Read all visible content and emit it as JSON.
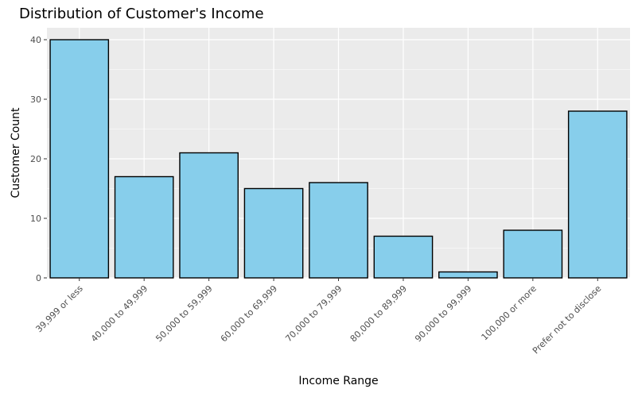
{
  "chart_data": {
    "type": "bar",
    "title": "Distribution of Customer's Income",
    "xlabel": "Income Range",
    "ylabel": "Customer Count",
    "categories": [
      "39,999 or less",
      "40,000 to 49,999",
      "50,000 to 59,999",
      "60,000 to 69,999",
      "70,000 to 79,999",
      "80,000 to 89,999",
      "90,000 to 99,999",
      "100,000 or more",
      "Prefer not to disclose"
    ],
    "values": [
      40,
      17,
      21,
      15,
      16,
      7,
      1,
      8,
      28
    ],
    "ylim": [
      0,
      42
    ],
    "yticks": [
      0,
      10,
      20,
      30,
      40
    ],
    "grid": true,
    "colors": {
      "bar_fill": "#87CEEB",
      "bar_stroke": "#000000",
      "panel_bg": "#EBEBEB",
      "grid_major": "#FFFFFF",
      "tick_text": "#4D4D4D"
    }
  }
}
